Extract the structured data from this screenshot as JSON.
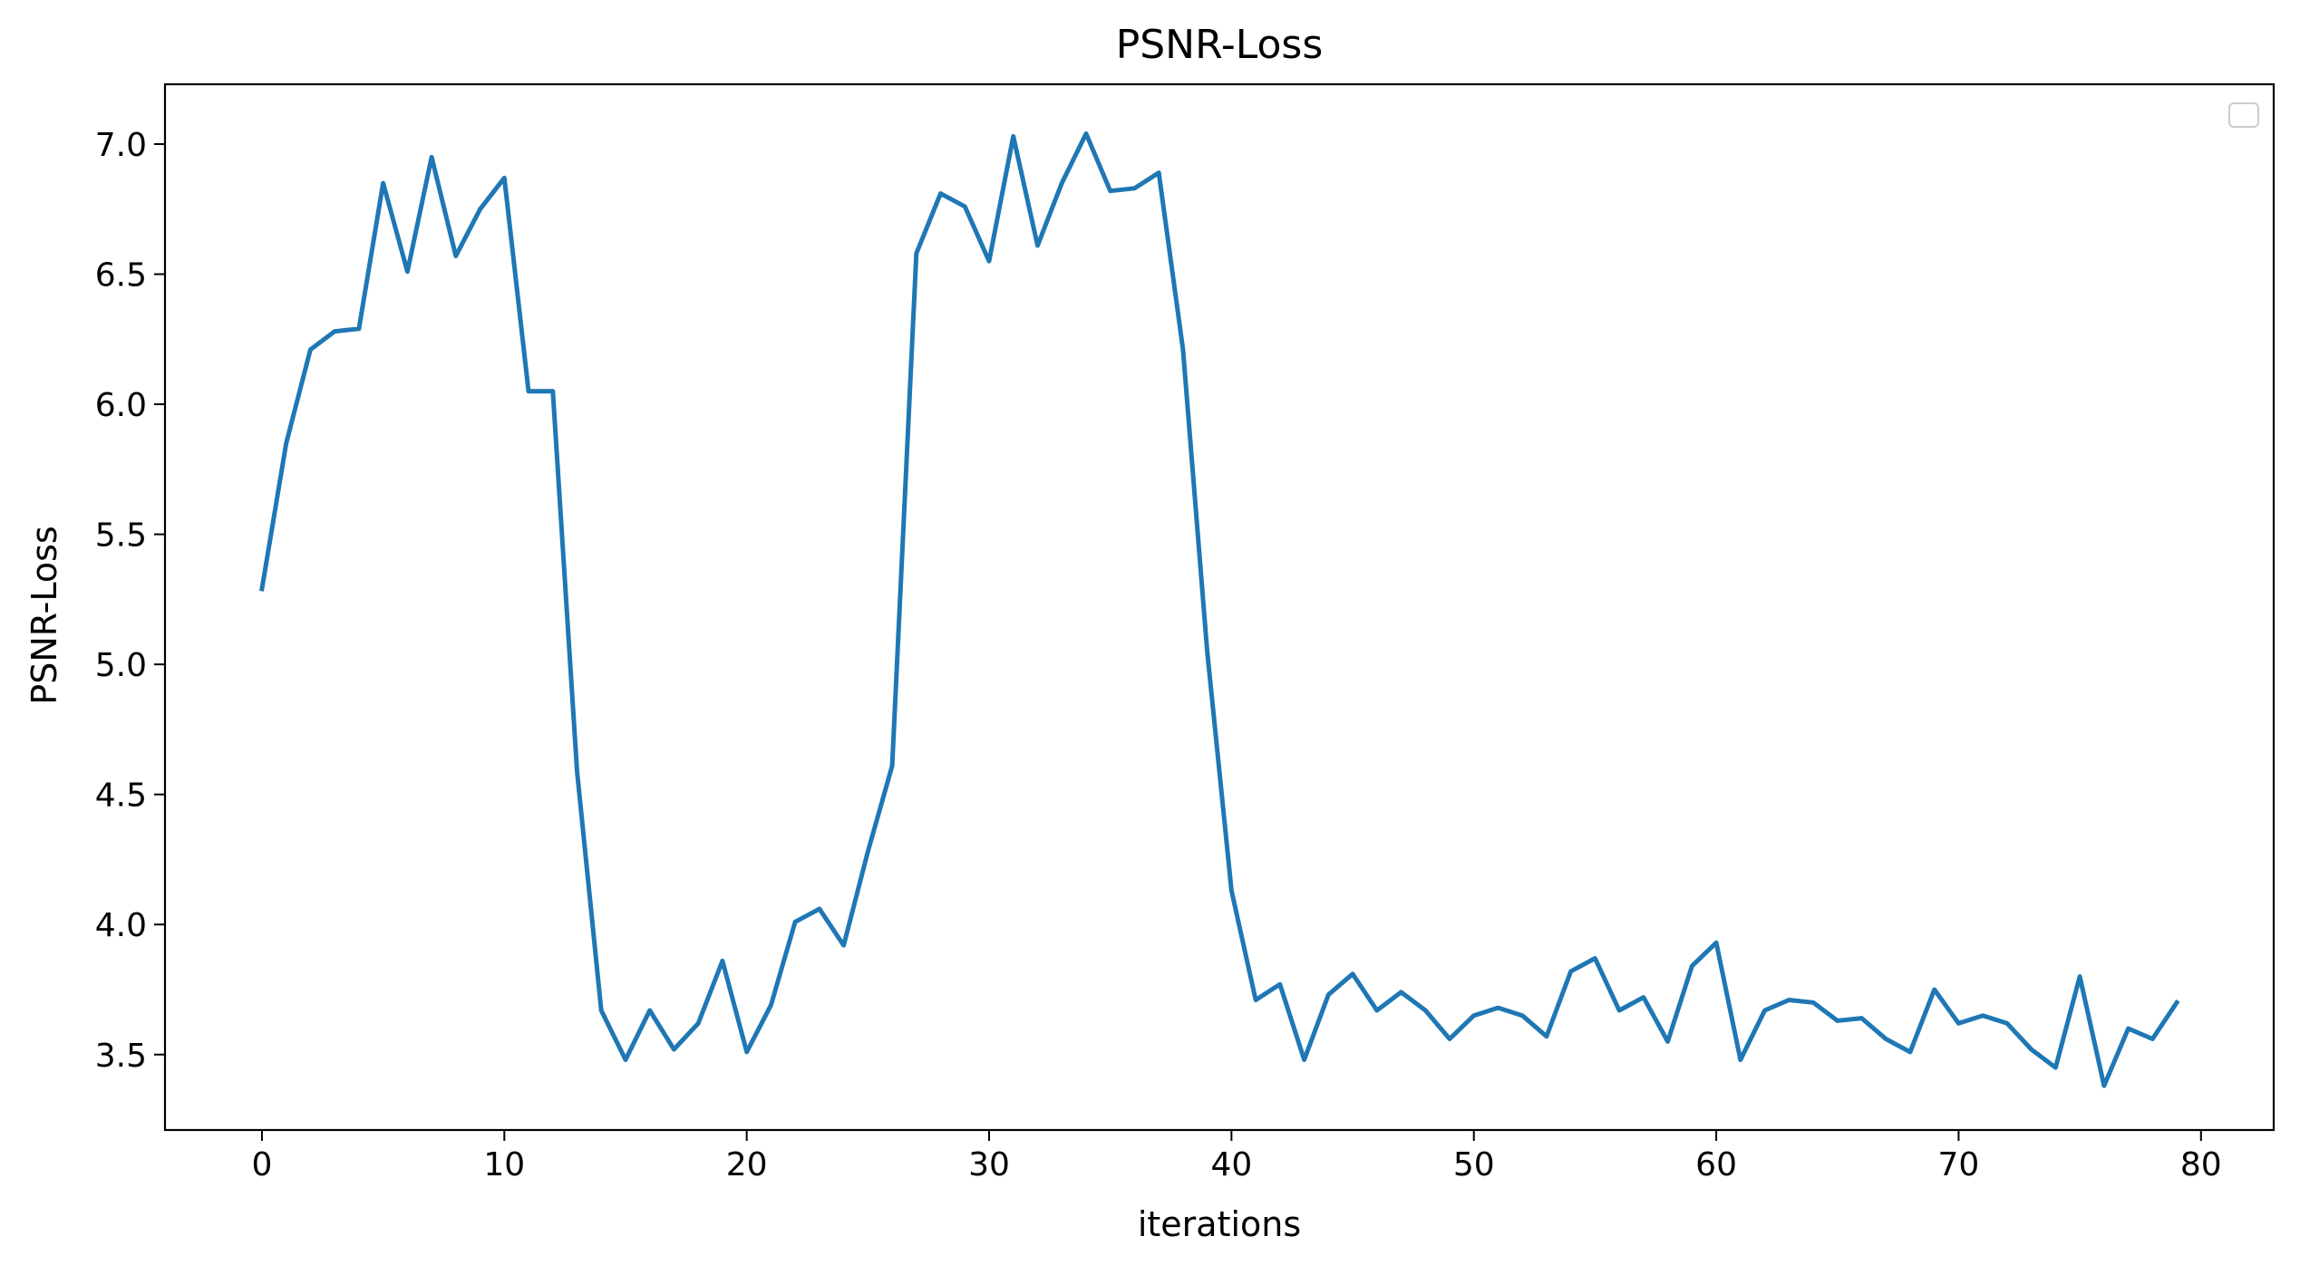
{
  "chart_data": {
    "type": "line",
    "title": "PSNR-Loss",
    "xlabel": "iterations",
    "ylabel": "PSNR-Loss",
    "xlim": [
      -4,
      83
    ],
    "ylim": [
      3.21,
      7.23
    ],
    "x_ticks": [
      0,
      10,
      20,
      30,
      40,
      50,
      60,
      70,
      80
    ],
    "y_ticks": [
      3.5,
      4.0,
      4.5,
      5.0,
      5.5,
      6.0,
      6.5,
      7.0
    ],
    "x_tick_labels": [
      "0",
      "10",
      "20",
      "30",
      "40",
      "50",
      "60",
      "70",
      "80"
    ],
    "y_tick_labels": [
      "3.5",
      "4.0",
      "4.5",
      "5.0",
      "5.5",
      "6.0",
      "6.5",
      "7.0"
    ],
    "grid": false,
    "legend": {
      "placement": "top-right",
      "entries": []
    },
    "colors": {
      "line": "#1f77b4",
      "axes": "#000000",
      "legend_border": "#cccccc"
    },
    "series": [
      {
        "x": [
          0,
          1,
          2,
          3,
          4,
          5,
          6,
          7,
          8,
          9,
          10,
          11,
          12,
          13,
          14,
          15,
          16,
          17,
          18,
          19,
          20,
          21,
          22,
          23,
          24,
          25,
          26,
          27,
          28,
          29,
          30,
          31,
          32,
          33,
          34,
          35,
          36,
          37,
          38,
          39,
          40,
          41,
          42,
          43,
          44,
          45,
          46,
          47,
          48,
          49,
          50,
          51,
          52,
          53,
          54,
          55,
          56,
          57,
          58,
          59,
          60,
          61,
          62,
          63,
          64,
          65,
          66,
          67,
          68,
          69,
          70,
          71,
          72,
          73,
          74,
          75,
          76,
          77,
          78,
          79
        ],
        "values": [
          5.29,
          5.85,
          6.21,
          6.28,
          6.29,
          6.85,
          6.51,
          6.95,
          6.57,
          6.75,
          6.87,
          6.05,
          6.05,
          4.59,
          3.67,
          3.48,
          3.67,
          3.52,
          3.62,
          3.86,
          3.51,
          3.69,
          4.01,
          4.06,
          3.92,
          4.28,
          4.61,
          6.58,
          6.81,
          6.76,
          6.55,
          7.03,
          6.61,
          6.85,
          7.04,
          6.82,
          6.83,
          6.89,
          6.21,
          5.05,
          4.13,
          3.71,
          3.77,
          3.48,
          3.73,
          3.81,
          3.67,
          3.74,
          3.67,
          3.56,
          3.65,
          3.68,
          3.65,
          3.57,
          3.82,
          3.87,
          3.67,
          3.72,
          3.55,
          3.84,
          3.93,
          3.48,
          3.67,
          3.71,
          3.7,
          3.63,
          3.64,
          3.56,
          3.51,
          3.75,
          3.62,
          3.65,
          3.62,
          3.52,
          3.45,
          3.8,
          3.38,
          3.6,
          3.56,
          3.7
        ]
      }
    ]
  }
}
